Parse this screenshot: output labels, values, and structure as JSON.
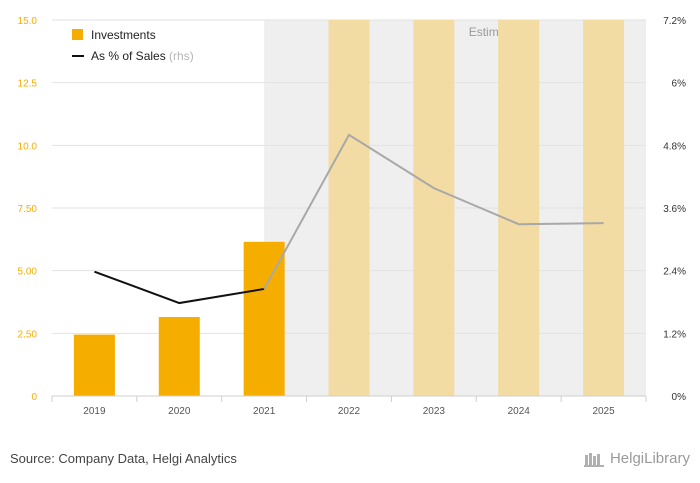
{
  "chart_data": {
    "type": "bar",
    "categories": [
      "2019",
      "2020",
      "2021",
      "2022",
      "2023",
      "2024",
      "2025"
    ],
    "series": [
      {
        "name": "Investments",
        "kind": "bar",
        "axis": "left",
        "values": [
          2.45,
          3.15,
          6.15,
          15.0,
          15.0,
          15.0,
          15.0
        ],
        "estimate_from_index": 3,
        "color": "#f5ae00",
        "estimate_color": "#f3dca3"
      },
      {
        "name": "As % of Sales",
        "name_suffix": "(rhs)",
        "kind": "line",
        "axis": "right",
        "values": [
          2.38,
          1.78,
          2.05,
          5.0,
          3.98,
          3.29,
          3.31
        ],
        "estimate_from_index": 2,
        "color": "#111111",
        "estimate_color": "#a8a8a8"
      }
    ],
    "y_left": {
      "ylim": [
        0,
        15
      ],
      "ticks": [
        "0",
        "2.50",
        "5.00",
        "7.50",
        "10.0",
        "12.5",
        "15.0"
      ],
      "tick_values": [
        0,
        2.5,
        5,
        7.5,
        10,
        12.5,
        15
      ],
      "color": "#f5ae00"
    },
    "y_right": {
      "ylim": [
        0,
        7.2
      ],
      "ticks": [
        "0%",
        "1.2%",
        "2.4%",
        "3.6%",
        "4.8%",
        "6%",
        "7.2%"
      ],
      "tick_values": [
        0,
        1.2,
        2.4,
        3.6,
        4.8,
        6,
        7.2
      ]
    },
    "estimates_label": "Estimates",
    "estimate_region_start_index": 2.5,
    "legend_placement": "top-left",
    "grid": true,
    "title": "",
    "xlabel": "",
    "ylabel": ""
  },
  "footer": {
    "source": "Source: Company Data, Helgi Analytics",
    "brand": "HelgiLibrary"
  }
}
